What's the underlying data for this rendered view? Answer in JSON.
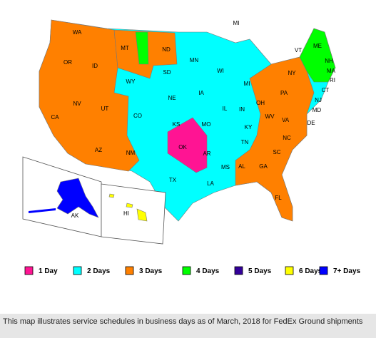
{
  "map_labels": [
    "WA",
    "OR",
    "ID",
    "MT",
    "WY",
    "ND",
    "SD",
    "NE",
    "CO",
    "UT",
    "NV",
    "CA",
    "AZ",
    "NM",
    "KS",
    "OK",
    "TX",
    "MN",
    "IA",
    "MO",
    "AR",
    "LA",
    "WI",
    "IL",
    "MS",
    "MI",
    "MI",
    "IN",
    "KY",
    "TN",
    "AL",
    "OH",
    "GA",
    "FL",
    "SC",
    "NC",
    "VA",
    "WV",
    "PA",
    "NY",
    "VT",
    "ME",
    "NH",
    "MA",
    "RI",
    "CT",
    "NJ",
    "MD",
    "DE",
    "AK",
    "HI"
  ],
  "legend": [
    {
      "label": "1 Day",
      "color": "#ff1493"
    },
    {
      "label": "2 Days",
      "color": "#00ffff"
    },
    {
      "label": "3 Days",
      "color": "#ff8000"
    },
    {
      "label": "4 Days",
      "color": "#00ff00"
    },
    {
      "label": "5 Days",
      "color": "#330099"
    },
    {
      "label": "6 Days",
      "color": "#ffff00"
    },
    {
      "label": "7+ Days",
      "color": "#0000ff"
    }
  ],
  "caption": "This map illustrates service schedules in business days as of March, 2018 for FedEx Ground shipments"
}
